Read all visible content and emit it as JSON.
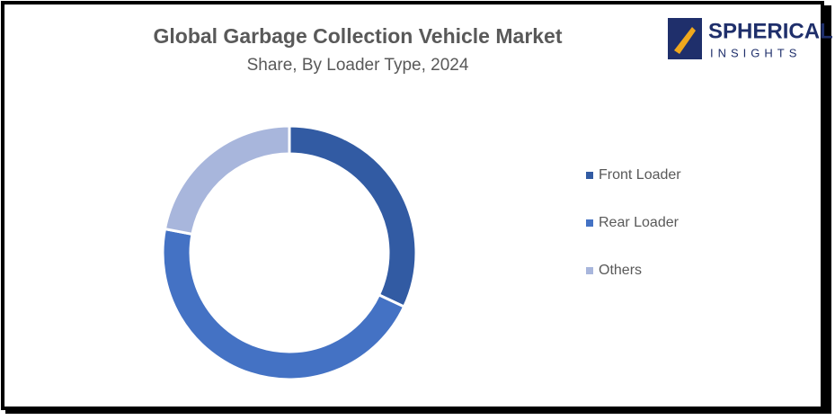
{
  "chart_data": {
    "type": "donut",
    "title": "Global Garbage Collection Vehicle Market",
    "subtitle": "Share, By Loader Type, 2024",
    "categories": [
      "Front Loader",
      "Rear Loader",
      "Others"
    ],
    "values": [
      32,
      46,
      22
    ],
    "colors": [
      "#325ba3",
      "#4472c4",
      "#a8b6dc"
    ],
    "legend": "right"
  },
  "logo": {
    "name": "SPHERICAL",
    "tagline": "INSIGHTS"
  }
}
